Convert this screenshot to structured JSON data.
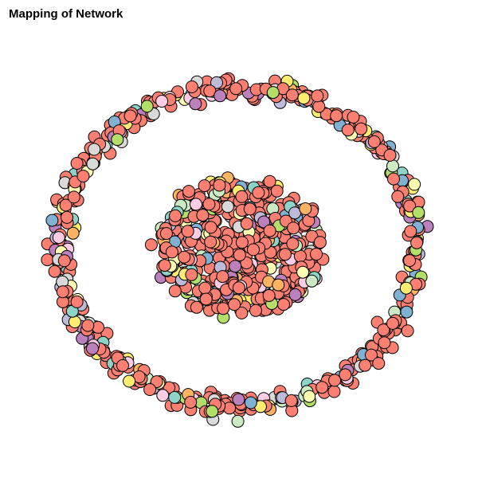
{
  "header": {
    "title": "Mapping of Network"
  },
  "network": {
    "node_outline": "#000000",
    "palette": [
      "#FB8072",
      "#FDB462",
      "#8DD3C7",
      "#FFFFB3",
      "#BEBADA",
      "#80B1D3",
      "#B3DE69",
      "#FCCDE5",
      "#D9D9D9",
      "#BC80BD",
      "#CCEBC5",
      "#FFED6F"
    ],
    "dominant_color": "#FB8072"
  }
}
